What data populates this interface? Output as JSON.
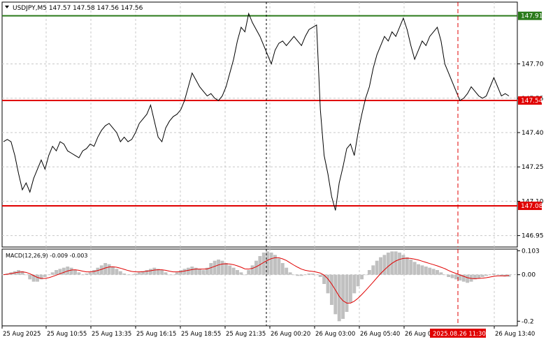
{
  "header": {
    "symbol_line": "USDJPY,M5  147.57 147.58 147.56 147.56"
  },
  "colors": {
    "background": "#ffffff",
    "frame": "#000000",
    "grid": "#c8c8c8",
    "price_line": "#000000",
    "support_resistance": "#e00000",
    "top_level": "#2a7a1a",
    "macd_hist": "#c0c0c0",
    "macd_signal": "#e00000",
    "vline_dark": "#000000",
    "vline_red": "#e00000"
  },
  "price_scale": {
    "ticks": [
      "147.70",
      "147.55",
      "147.40",
      "147.25",
      "147.10",
      "146.95"
    ],
    "levels": [
      {
        "label": "147.91",
        "kind": "resistance",
        "color": "#2a7a1a"
      },
      {
        "label": "147.54",
        "kind": "resistance",
        "color": "#e00000"
      },
      {
        "label": "147.08",
        "kind": "support",
        "color": "#e00000"
      }
    ]
  },
  "macd": {
    "label": "MACD(12,26,9) -0.009 -0.003",
    "ticks": [
      "0.103",
      "0.00",
      "-0.2"
    ]
  },
  "time_axis": {
    "ticks": [
      "25 Aug 2025",
      "25 Aug 10:55",
      "25 Aug 13:35",
      "25 Aug 16:15",
      "25 Aug 18:55",
      "25 Aug 21:35",
      "26 Aug 00:20",
      "26 Aug 03:00",
      "26 Aug 05:40",
      "26 Aug 0",
      "26 Aug 13:40"
    ],
    "highlight": "2025.08.26 11:30"
  },
  "chart_data": {
    "type": "line",
    "title": "USDJPY,M5",
    "ohlc_last": {
      "open": 147.57,
      "high": 147.58,
      "low": 147.56,
      "close": 147.56
    },
    "ylim": [
      146.9,
      147.97
    ],
    "series": [
      {
        "name": "USDJPY",
        "values": [
          147.36,
          147.37,
          147.36,
          147.3,
          147.22,
          147.15,
          147.18,
          147.14,
          147.2,
          147.24,
          147.28,
          147.24,
          147.3,
          147.34,
          147.32,
          147.36,
          147.35,
          147.32,
          147.31,
          147.3,
          147.29,
          147.32,
          147.33,
          147.35,
          147.34,
          147.38,
          147.41,
          147.43,
          147.44,
          147.42,
          147.4,
          147.36,
          147.38,
          147.36,
          147.37,
          147.4,
          147.44,
          147.46,
          147.48,
          147.52,
          147.45,
          147.38,
          147.36,
          147.42,
          147.45,
          147.47,
          147.48,
          147.5,
          147.54,
          147.6,
          147.66,
          147.63,
          147.6,
          147.58,
          147.56,
          147.57,
          147.55,
          147.54,
          147.56,
          147.6,
          147.66,
          147.72,
          147.8,
          147.86,
          147.84,
          147.92,
          147.88,
          147.85,
          147.82,
          147.78,
          147.74,
          147.7,
          147.76,
          147.79,
          147.8,
          147.78,
          147.8,
          147.82,
          147.8,
          147.78,
          147.82,
          147.85,
          147.86,
          147.87,
          147.5,
          147.3,
          147.22,
          147.12,
          147.06,
          147.18,
          147.25,
          147.33,
          147.35,
          147.3,
          147.4,
          147.48,
          147.55,
          147.6,
          147.68,
          147.74,
          147.78,
          147.82,
          147.8,
          147.84,
          147.82,
          147.86,
          147.9,
          147.85,
          147.78,
          147.72,
          147.76,
          147.8,
          147.78,
          147.82,
          147.84,
          147.86,
          147.8,
          147.7,
          147.66,
          147.62,
          147.58,
          147.54,
          147.55,
          147.57,
          147.6,
          147.58,
          147.56,
          147.55,
          147.56,
          147.6,
          147.64,
          147.6,
          147.56,
          147.57,
          147.56
        ],
        "color": "#000000"
      }
    ],
    "macd": {
      "ylim": [
        -0.22,
        0.11
      ],
      "histogram": [
        0.0,
        0.005,
        0.01,
        0.015,
        0.02,
        0.015,
        0.0,
        -0.02,
        -0.03,
        -0.03,
        -0.02,
        -0.01,
        0.0,
        0.01,
        0.02,
        0.025,
        0.03,
        0.035,
        0.03,
        0.02,
        0.01,
        0.0,
        0.005,
        0.01,
        0.02,
        0.03,
        0.04,
        0.05,
        0.045,
        0.035,
        0.025,
        0.015,
        0.005,
        0.0,
        0.0,
        0.005,
        0.01,
        0.015,
        0.02,
        0.025,
        0.03,
        0.025,
        0.02,
        0.01,
        0.0,
        0.0,
        0.01,
        0.02,
        0.025,
        0.03,
        0.035,
        0.03,
        0.025,
        0.02,
        0.03,
        0.05,
        0.06,
        0.065,
        0.06,
        0.05,
        0.04,
        0.03,
        0.02,
        0.01,
        0.0,
        0.02,
        0.04,
        0.06,
        0.08,
        0.095,
        0.1,
        0.095,
        0.085,
        0.07,
        0.05,
        0.03,
        0.01,
        0.0,
        -0.005,
        -0.005,
        0.0,
        0.005,
        0.005,
        0.0,
        -0.01,
        -0.04,
        -0.08,
        -0.13,
        -0.17,
        -0.2,
        -0.19,
        -0.16,
        -0.12,
        -0.08,
        -0.05,
        -0.02,
        0.0,
        0.02,
        0.04,
        0.06,
        0.075,
        0.085,
        0.095,
        0.1,
        0.1,
        0.095,
        0.085,
        0.075,
        0.065,
        0.055,
        0.045,
        0.04,
        0.035,
        0.03,
        0.025,
        0.02,
        0.01,
        0.0,
        -0.01,
        -0.015,
        -0.02,
        -0.025,
        -0.03,
        -0.035,
        -0.03,
        -0.02,
        -0.015,
        -0.01,
        -0.005,
        0.0,
        0.005,
        0.0,
        -0.005,
        -0.008,
        -0.009
      ],
      "signal": [
        0.0,
        0.002,
        0.005,
        0.008,
        0.011,
        0.012,
        0.01,
        0.004,
        -0.004,
        -0.012,
        -0.016,
        -0.016,
        -0.013,
        -0.008,
        -0.002,
        0.004,
        0.01,
        0.016,
        0.02,
        0.021,
        0.019,
        0.015,
        0.012,
        0.012,
        0.014,
        0.018,
        0.023,
        0.029,
        0.033,
        0.034,
        0.032,
        0.028,
        0.023,
        0.018,
        0.014,
        0.012,
        0.012,
        0.013,
        0.015,
        0.017,
        0.02,
        0.021,
        0.021,
        0.019,
        0.015,
        0.012,
        0.012,
        0.013,
        0.016,
        0.019,
        0.022,
        0.024,
        0.024,
        0.024,
        0.025,
        0.03,
        0.036,
        0.042,
        0.046,
        0.047,
        0.046,
        0.043,
        0.038,
        0.032,
        0.025,
        0.024,
        0.027,
        0.034,
        0.043,
        0.053,
        0.062,
        0.069,
        0.073,
        0.073,
        0.068,
        0.061,
        0.051,
        0.041,
        0.032,
        0.024,
        0.019,
        0.016,
        0.014,
        0.011,
        0.007,
        -0.002,
        -0.018,
        -0.04,
        -0.066,
        -0.093,
        -0.112,
        -0.122,
        -0.122,
        -0.114,
        -0.101,
        -0.085,
        -0.068,
        -0.05,
        -0.032,
        -0.013,
        0.005,
        0.021,
        0.036,
        0.049,
        0.059,
        0.066,
        0.07,
        0.071,
        0.07,
        0.067,
        0.063,
        0.058,
        0.053,
        0.048,
        0.043,
        0.038,
        0.032,
        0.026,
        0.018,
        0.011,
        0.005,
        -0.001,
        -0.007,
        -0.013,
        -0.016,
        -0.017,
        -0.016,
        -0.015,
        -0.013,
        -0.01,
        -0.007,
        -0.005,
        -0.005,
        -0.005,
        -0.003
      ]
    }
  }
}
